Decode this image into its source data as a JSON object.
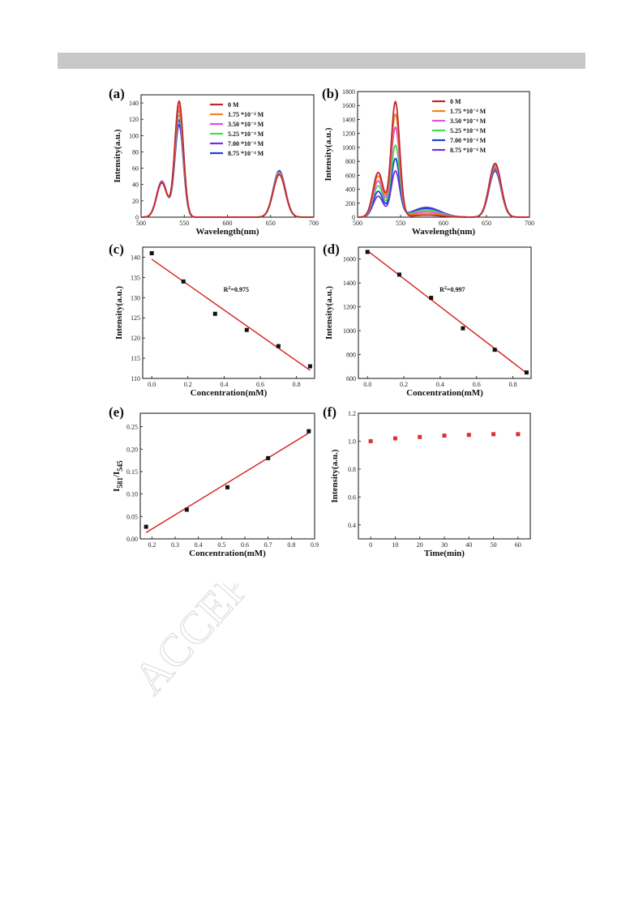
{
  "watermark": "ACCEPTED",
  "chart_data": [
    {
      "id": "a",
      "panel_label": "(a)",
      "type": "line",
      "xlabel": "Wavelength(nm)",
      "ylabel": "Intensity(a.u.)",
      "xlim": [
        500,
        700
      ],
      "ylim": [
        0,
        150
      ],
      "xticks": [
        500,
        550,
        600,
        650,
        700
      ],
      "yticks": [
        0,
        20,
        40,
        60,
        80,
        100,
        120,
        140
      ],
      "legend_position": "top-right",
      "peaks": [
        {
          "center": 524,
          "width": 6
        },
        {
          "center": 544,
          "width": 5
        },
        {
          "center": 660,
          "width": 7
        }
      ],
      "series": [
        {
          "name": "0 M",
          "color": "#c0272d",
          "peak_heights": [
            42,
            142,
            52
          ]
        },
        {
          "name": "1.75 *10⁻⁴ M",
          "color": "#f58220",
          "peak_heights": [
            42,
            136,
            53
          ]
        },
        {
          "name": "3.50 *10⁻⁴ M",
          "color": "#e04fe0",
          "peak_heights": [
            43,
            131,
            54
          ]
        },
        {
          "name": "5.25 *10⁻⁴ M",
          "color": "#3ee04f",
          "peak_heights": [
            43,
            125,
            55
          ]
        },
        {
          "name": "7.00 *10⁻⁴ M",
          "color": "#7a2fd6",
          "peak_heights": [
            44,
            119,
            56
          ]
        },
        {
          "name": "8.75 *10⁻⁴ M",
          "color": "#1f3fe0",
          "peak_heights": [
            44,
            113,
            57
          ]
        }
      ]
    },
    {
      "id": "b",
      "panel_label": "(b)",
      "type": "line",
      "xlabel": "Wavelength(nm)",
      "ylabel": "Intensity(a.u.)",
      "xlim": [
        500,
        700
      ],
      "ylim": [
        0,
        1800
      ],
      "xticks": [
        500,
        550,
        600,
        650,
        700
      ],
      "yticks": [
        0,
        200,
        400,
        600,
        800,
        1000,
        1200,
        1400,
        1600,
        1800
      ],
      "legend_position": "top-right",
      "peaks": [
        {
          "center": 524,
          "width": 6
        },
        {
          "center": 544,
          "width": 5
        },
        {
          "center": 580,
          "width": 16
        },
        {
          "center": 660,
          "width": 7
        }
      ],
      "series": [
        {
          "name": "0 M",
          "color": "#c0272d",
          "peak_heights": [
            640,
            1650,
            30,
            770
          ]
        },
        {
          "name": "1.75 *10⁻⁴ M",
          "color": "#f58220",
          "peak_heights": [
            590,
            1470,
            55,
            750
          ]
        },
        {
          "name": "3.50 *10⁻⁴ M",
          "color": "#e04fe0",
          "peak_heights": [
            520,
            1280,
            80,
            730
          ]
        },
        {
          "name": "5.25 *10⁻⁴ M",
          "color": "#3ee04f",
          "peak_heights": [
            450,
            1020,
            105,
            710
          ]
        },
        {
          "name": "7.00 *10⁻⁴ M",
          "color": "#1f3fe0",
          "peak_heights": [
            370,
            830,
            125,
            690
          ]
        },
        {
          "name": "8.75 *10⁻⁴ M",
          "color": "#7a2fd6",
          "peak_heights": [
            300,
            650,
            140,
            660
          ]
        }
      ]
    },
    {
      "id": "c",
      "panel_label": "(c)",
      "type": "scatter",
      "xlabel": "Concentration(mM)",
      "ylabel": "Intensity(a.u.)",
      "xlim": [
        -0.05,
        0.9
      ],
      "ylim": [
        110,
        142.5
      ],
      "xticks": [
        0.0,
        0.2,
        0.4,
        0.6,
        0.8
      ],
      "yticks": [
        110,
        115,
        120,
        125,
        130,
        135,
        140
      ],
      "annotation": "R²=0.975",
      "points": [
        [
          0.0,
          141
        ],
        [
          0.175,
          134
        ],
        [
          0.35,
          126
        ],
        [
          0.525,
          122
        ],
        [
          0.7,
          118
        ],
        [
          0.875,
          113
        ]
      ],
      "fit_line": [
        [
          0.0,
          139.5
        ],
        [
          0.875,
          112
        ]
      ],
      "point_color": "#111111",
      "fit_color": "#d42020"
    },
    {
      "id": "d",
      "panel_label": "(d)",
      "type": "scatter",
      "xlabel": "Concentration(mM)",
      "ylabel": "Intensity(a.u.)",
      "xlim": [
        -0.05,
        0.9
      ],
      "ylim": [
        600,
        1700
      ],
      "xticks": [
        0.0,
        0.2,
        0.4,
        0.6,
        0.8
      ],
      "yticks": [
        600,
        800,
        1000,
        1200,
        1400,
        1600
      ],
      "annotation": "R²=0.997",
      "points": [
        [
          0.0,
          1660
        ],
        [
          0.175,
          1470
        ],
        [
          0.35,
          1275
        ],
        [
          0.525,
          1020
        ],
        [
          0.7,
          840
        ],
        [
          0.875,
          650
        ]
      ],
      "fit_line": [
        [
          0.0,
          1670
        ],
        [
          0.875,
          645
        ]
      ],
      "point_color": "#111111",
      "fit_color": "#d42020"
    },
    {
      "id": "e",
      "panel_label": "(e)",
      "type": "scatter",
      "xlabel": "Concentration(mM)",
      "ylabel": "I581/I545",
      "xlim": [
        0.15,
        0.9
      ],
      "ylim": [
        0.0,
        0.28
      ],
      "xticks": [
        0.2,
        0.3,
        0.4,
        0.5,
        0.6,
        0.7,
        0.8,
        0.9
      ],
      "yticks": [
        0.0,
        0.05,
        0.1,
        0.15,
        0.2,
        0.25
      ],
      "points": [
        [
          0.175,
          0.027
        ],
        [
          0.35,
          0.065
        ],
        [
          0.525,
          0.115
        ],
        [
          0.7,
          0.18
        ],
        [
          0.875,
          0.24
        ]
      ],
      "fit_line": [
        [
          0.175,
          0.014
        ],
        [
          0.875,
          0.236
        ]
      ],
      "point_color": "#111111",
      "fit_color": "#d42020"
    },
    {
      "id": "f",
      "panel_label": "(f)",
      "type": "scatter",
      "xlabel": "Time(min)",
      "ylabel": "Intensity(a.u.)",
      "xlim": [
        -5,
        65
      ],
      "ylim": [
        0.3,
        1.2
      ],
      "xticks": [
        0,
        10,
        20,
        30,
        40,
        50,
        60
      ],
      "yticks": [
        0.4,
        0.6,
        0.8,
        1.0,
        1.2
      ],
      "points": [
        [
          0,
          1.0
        ],
        [
          10,
          1.02
        ],
        [
          20,
          1.03
        ],
        [
          30,
          1.04
        ],
        [
          40,
          1.045
        ],
        [
          50,
          1.05
        ],
        [
          60,
          1.05
        ]
      ],
      "point_color": "#e03030"
    }
  ]
}
